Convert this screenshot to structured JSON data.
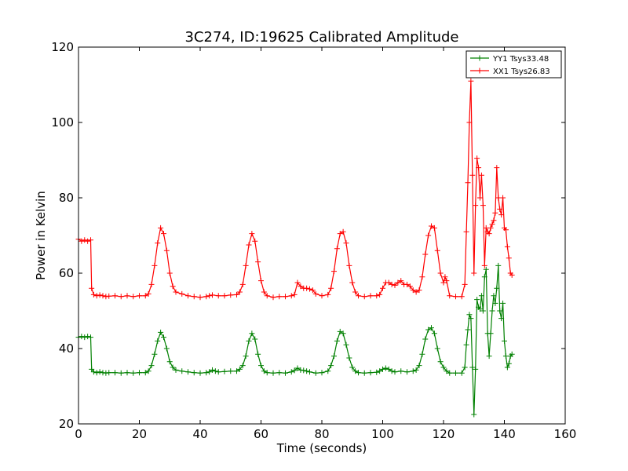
{
  "chart_data": {
    "type": "line",
    "title": "3C274, ID:19625 Calibrated Amplitude",
    "xlabel": "Time (seconds)",
    "ylabel": "Power in Kelvin",
    "xlim": [
      0,
      160
    ],
    "ylim": [
      20,
      120
    ],
    "xticks": [
      "0",
      "20",
      "40",
      "60",
      "80",
      "100",
      "120",
      "140",
      "160"
    ],
    "yticks": [
      "20",
      "40",
      "60",
      "80",
      "100",
      "120"
    ],
    "grid": false,
    "legend_position": "top-right",
    "marker": "plus",
    "series": [
      {
        "name": "YY1 Tsys33.48",
        "color": "#008000",
        "points": [
          [
            0,
            43.0
          ],
          [
            1,
            43.2
          ],
          [
            2,
            43.0
          ],
          [
            3,
            43.2
          ],
          [
            4,
            43.0
          ],
          [
            4.3,
            34.5
          ],
          [
            5,
            33.8
          ],
          [
            6,
            33.6
          ],
          [
            7,
            33.8
          ],
          [
            8,
            33.6
          ],
          [
            9,
            33.5
          ],
          [
            10,
            33.6
          ],
          [
            12,
            33.6
          ],
          [
            14,
            33.5
          ],
          [
            16,
            33.6
          ],
          [
            18,
            33.5
          ],
          [
            20,
            33.6
          ],
          [
            22,
            33.6
          ],
          [
            23,
            34.0
          ],
          [
            24,
            35.5
          ],
          [
            25,
            38.5
          ],
          [
            26,
            42.0
          ],
          [
            27,
            44.3
          ],
          [
            28,
            43.0
          ],
          [
            29,
            40.0
          ],
          [
            30,
            36.5
          ],
          [
            31,
            35.0
          ],
          [
            32,
            34.3
          ],
          [
            34,
            34.0
          ],
          [
            36,
            33.8
          ],
          [
            38,
            33.6
          ],
          [
            40,
            33.5
          ],
          [
            42,
            33.6
          ],
          [
            43,
            33.8
          ],
          [
            44,
            34.3
          ],
          [
            45,
            34.0
          ],
          [
            46,
            33.8
          ],
          [
            48,
            33.9
          ],
          [
            50,
            34.0
          ],
          [
            52,
            34.0
          ],
          [
            53,
            34.5
          ],
          [
            54,
            35.5
          ],
          [
            55,
            38.0
          ],
          [
            56,
            42.0
          ],
          [
            57,
            44.0
          ],
          [
            58,
            42.5
          ],
          [
            59,
            38.5
          ],
          [
            60,
            35.5
          ],
          [
            61,
            34.0
          ],
          [
            62,
            33.6
          ],
          [
            64,
            33.5
          ],
          [
            66,
            33.6
          ],
          [
            68,
            33.5
          ],
          [
            70,
            33.8
          ],
          [
            71,
            34.2
          ],
          [
            72,
            34.8
          ],
          [
            73,
            34.3
          ],
          [
            74,
            34.2
          ],
          [
            75,
            34.0
          ],
          [
            76,
            33.8
          ],
          [
            78,
            33.5
          ],
          [
            80,
            33.6
          ],
          [
            82,
            34.0
          ],
          [
            83,
            35.5
          ],
          [
            84,
            38.0
          ],
          [
            85,
            42.0
          ],
          [
            86,
            44.5
          ],
          [
            87,
            44.0
          ],
          [
            88,
            41.0
          ],
          [
            89,
            37.5
          ],
          [
            90,
            35.0
          ],
          [
            91,
            34.0
          ],
          [
            92,
            33.6
          ],
          [
            94,
            33.5
          ],
          [
            96,
            33.6
          ],
          [
            98,
            33.7
          ],
          [
            99,
            34.0
          ],
          [
            100,
            34.5
          ],
          [
            101,
            34.8
          ],
          [
            102,
            34.5
          ],
          [
            103,
            34.0
          ],
          [
            104,
            33.8
          ],
          [
            106,
            34.0
          ],
          [
            108,
            33.8
          ],
          [
            110,
            34.0
          ],
          [
            111,
            34.3
          ],
          [
            112,
            35.5
          ],
          [
            113,
            38.5
          ],
          [
            114,
            42.5
          ],
          [
            115,
            45.0
          ],
          [
            116,
            45.5
          ],
          [
            117,
            44.0
          ],
          [
            118,
            40.0
          ],
          [
            119,
            36.5
          ],
          [
            120,
            35.0
          ],
          [
            121,
            34.0
          ],
          [
            122,
            33.5
          ],
          [
            124,
            33.5
          ],
          [
            126,
            33.5
          ],
          [
            127,
            35.0
          ],
          [
            127.5,
            41.0
          ],
          [
            128,
            45.0
          ],
          [
            128.5,
            49.0
          ],
          [
            129,
            48.0
          ],
          [
            129.5,
            35.0
          ],
          [
            130,
            22.5
          ],
          [
            130.5,
            34.5
          ],
          [
            131,
            53.0
          ],
          [
            131.5,
            51.0
          ],
          [
            132,
            50.5
          ],
          [
            132.5,
            54.0
          ],
          [
            133,
            50.0
          ],
          [
            133.5,
            59.0
          ],
          [
            134,
            61.0
          ],
          [
            134.5,
            44.0
          ],
          [
            135,
            38.0
          ],
          [
            135.5,
            44.0
          ],
          [
            136,
            50.0
          ],
          [
            136.5,
            54.0
          ],
          [
            137,
            52.0
          ],
          [
            137.5,
            56.0
          ],
          [
            138,
            62.0
          ],
          [
            138.5,
            50.0
          ],
          [
            139,
            48.0
          ],
          [
            139.5,
            52.0
          ],
          [
            140,
            42.0
          ],
          [
            140.5,
            38.0
          ],
          [
            141,
            35.0
          ],
          [
            141.5,
            36.0
          ],
          [
            142,
            38.0
          ],
          [
            142.5,
            38.5
          ]
        ]
      },
      {
        "name": "XX1 Tsys26.83",
        "color": "#ff0000",
        "points": [
          [
            0,
            69.0
          ],
          [
            1,
            68.5
          ],
          [
            2,
            68.8
          ],
          [
            3,
            68.5
          ],
          [
            4,
            68.8
          ],
          [
            4.3,
            56.0
          ],
          [
            5,
            54.3
          ],
          [
            6,
            54.0
          ],
          [
            7,
            54.2
          ],
          [
            8,
            54.0
          ],
          [
            9,
            53.8
          ],
          [
            10,
            53.9
          ],
          [
            12,
            54.0
          ],
          [
            14,
            53.8
          ],
          [
            16,
            54.0
          ],
          [
            18,
            53.8
          ],
          [
            20,
            54.0
          ],
          [
            22,
            54.0
          ],
          [
            23,
            54.5
          ],
          [
            24,
            57.0
          ],
          [
            25,
            62.0
          ],
          [
            26,
            68.0
          ],
          [
            27,
            72.0
          ],
          [
            28,
            70.5
          ],
          [
            29,
            66.0
          ],
          [
            30,
            60.0
          ],
          [
            31,
            56.5
          ],
          [
            32,
            55.0
          ],
          [
            34,
            54.5
          ],
          [
            36,
            54.0
          ],
          [
            38,
            53.8
          ],
          [
            40,
            53.6
          ],
          [
            42,
            53.8
          ],
          [
            43,
            54.0
          ],
          [
            44,
            54.2
          ],
          [
            46,
            54.0
          ],
          [
            48,
            54.0
          ],
          [
            50,
            54.2
          ],
          [
            52,
            54.3
          ],
          [
            53,
            55.0
          ],
          [
            54,
            57.0
          ],
          [
            55,
            62.0
          ],
          [
            56,
            67.5
          ],
          [
            57,
            70.5
          ],
          [
            58,
            68.5
          ],
          [
            59,
            63.0
          ],
          [
            60,
            58.0
          ],
          [
            61,
            55.0
          ],
          [
            62,
            54.0
          ],
          [
            64,
            53.6
          ],
          [
            66,
            53.8
          ],
          [
            68,
            53.8
          ],
          [
            70,
            54.0
          ],
          [
            71,
            54.3
          ],
          [
            72,
            57.5
          ],
          [
            73,
            56.5
          ],
          [
            74,
            56.0
          ],
          [
            75,
            56.0
          ],
          [
            76,
            55.8
          ],
          [
            77,
            55.5
          ],
          [
            78,
            54.5
          ],
          [
            80,
            54.0
          ],
          [
            82,
            54.3
          ],
          [
            83,
            56.0
          ],
          [
            84,
            60.5
          ],
          [
            85,
            66.5
          ],
          [
            86,
            70.5
          ],
          [
            87,
            71.0
          ],
          [
            88,
            68.0
          ],
          [
            89,
            62.0
          ],
          [
            90,
            57.5
          ],
          [
            91,
            55.0
          ],
          [
            92,
            54.0
          ],
          [
            94,
            53.8
          ],
          [
            96,
            54.0
          ],
          [
            98,
            54.0
          ],
          [
            99,
            54.3
          ],
          [
            100,
            56.0
          ],
          [
            101,
            57.5
          ],
          [
            102,
            57.5
          ],
          [
            103,
            57.0
          ],
          [
            104,
            56.8
          ],
          [
            105,
            57.5
          ],
          [
            106,
            58.0
          ],
          [
            107,
            57.0
          ],
          [
            108,
            57.0
          ],
          [
            109,
            56.5
          ],
          [
            110,
            55.5
          ],
          [
            111,
            55.0
          ],
          [
            112,
            55.5
          ],
          [
            113,
            59.0
          ],
          [
            114,
            65.0
          ],
          [
            115,
            70.0
          ],
          [
            116,
            72.5
          ],
          [
            117,
            72.0
          ],
          [
            118,
            66.0
          ],
          [
            119,
            60.0
          ],
          [
            120,
            57.5
          ],
          [
            120.5,
            59.0
          ],
          [
            121,
            58.0
          ],
          [
            122,
            54.0
          ],
          [
            124,
            53.8
          ],
          [
            126,
            53.8
          ],
          [
            127,
            57.0
          ],
          [
            127.5,
            71.0
          ],
          [
            128,
            84.0
          ],
          [
            128.5,
            100.0
          ],
          [
            129,
            111.0
          ],
          [
            129.5,
            86.0
          ],
          [
            130,
            60.0
          ],
          [
            130.5,
            78.0
          ],
          [
            131,
            90.5
          ],
          [
            131.5,
            88.0
          ],
          [
            132,
            80.0
          ],
          [
            132.5,
            86.0
          ],
          [
            133,
            78.0
          ],
          [
            133.5,
            62.0
          ],
          [
            134,
            72.0
          ],
          [
            134.5,
            71.0
          ],
          [
            135,
            70.5
          ],
          [
            135.5,
            72.0
          ],
          [
            136,
            73.0
          ],
          [
            136.5,
            74.0
          ],
          [
            137,
            76.0
          ],
          [
            137.5,
            88.0
          ],
          [
            138,
            80.0
          ],
          [
            138.5,
            77.0
          ],
          [
            139,
            75.5
          ],
          [
            139.5,
            80.0
          ],
          [
            140,
            72.0
          ],
          [
            140.5,
            71.5
          ],
          [
            141,
            67.0
          ],
          [
            141.5,
            64.0
          ],
          [
            142,
            60.0
          ],
          [
            142.5,
            59.5
          ]
        ]
      }
    ]
  }
}
